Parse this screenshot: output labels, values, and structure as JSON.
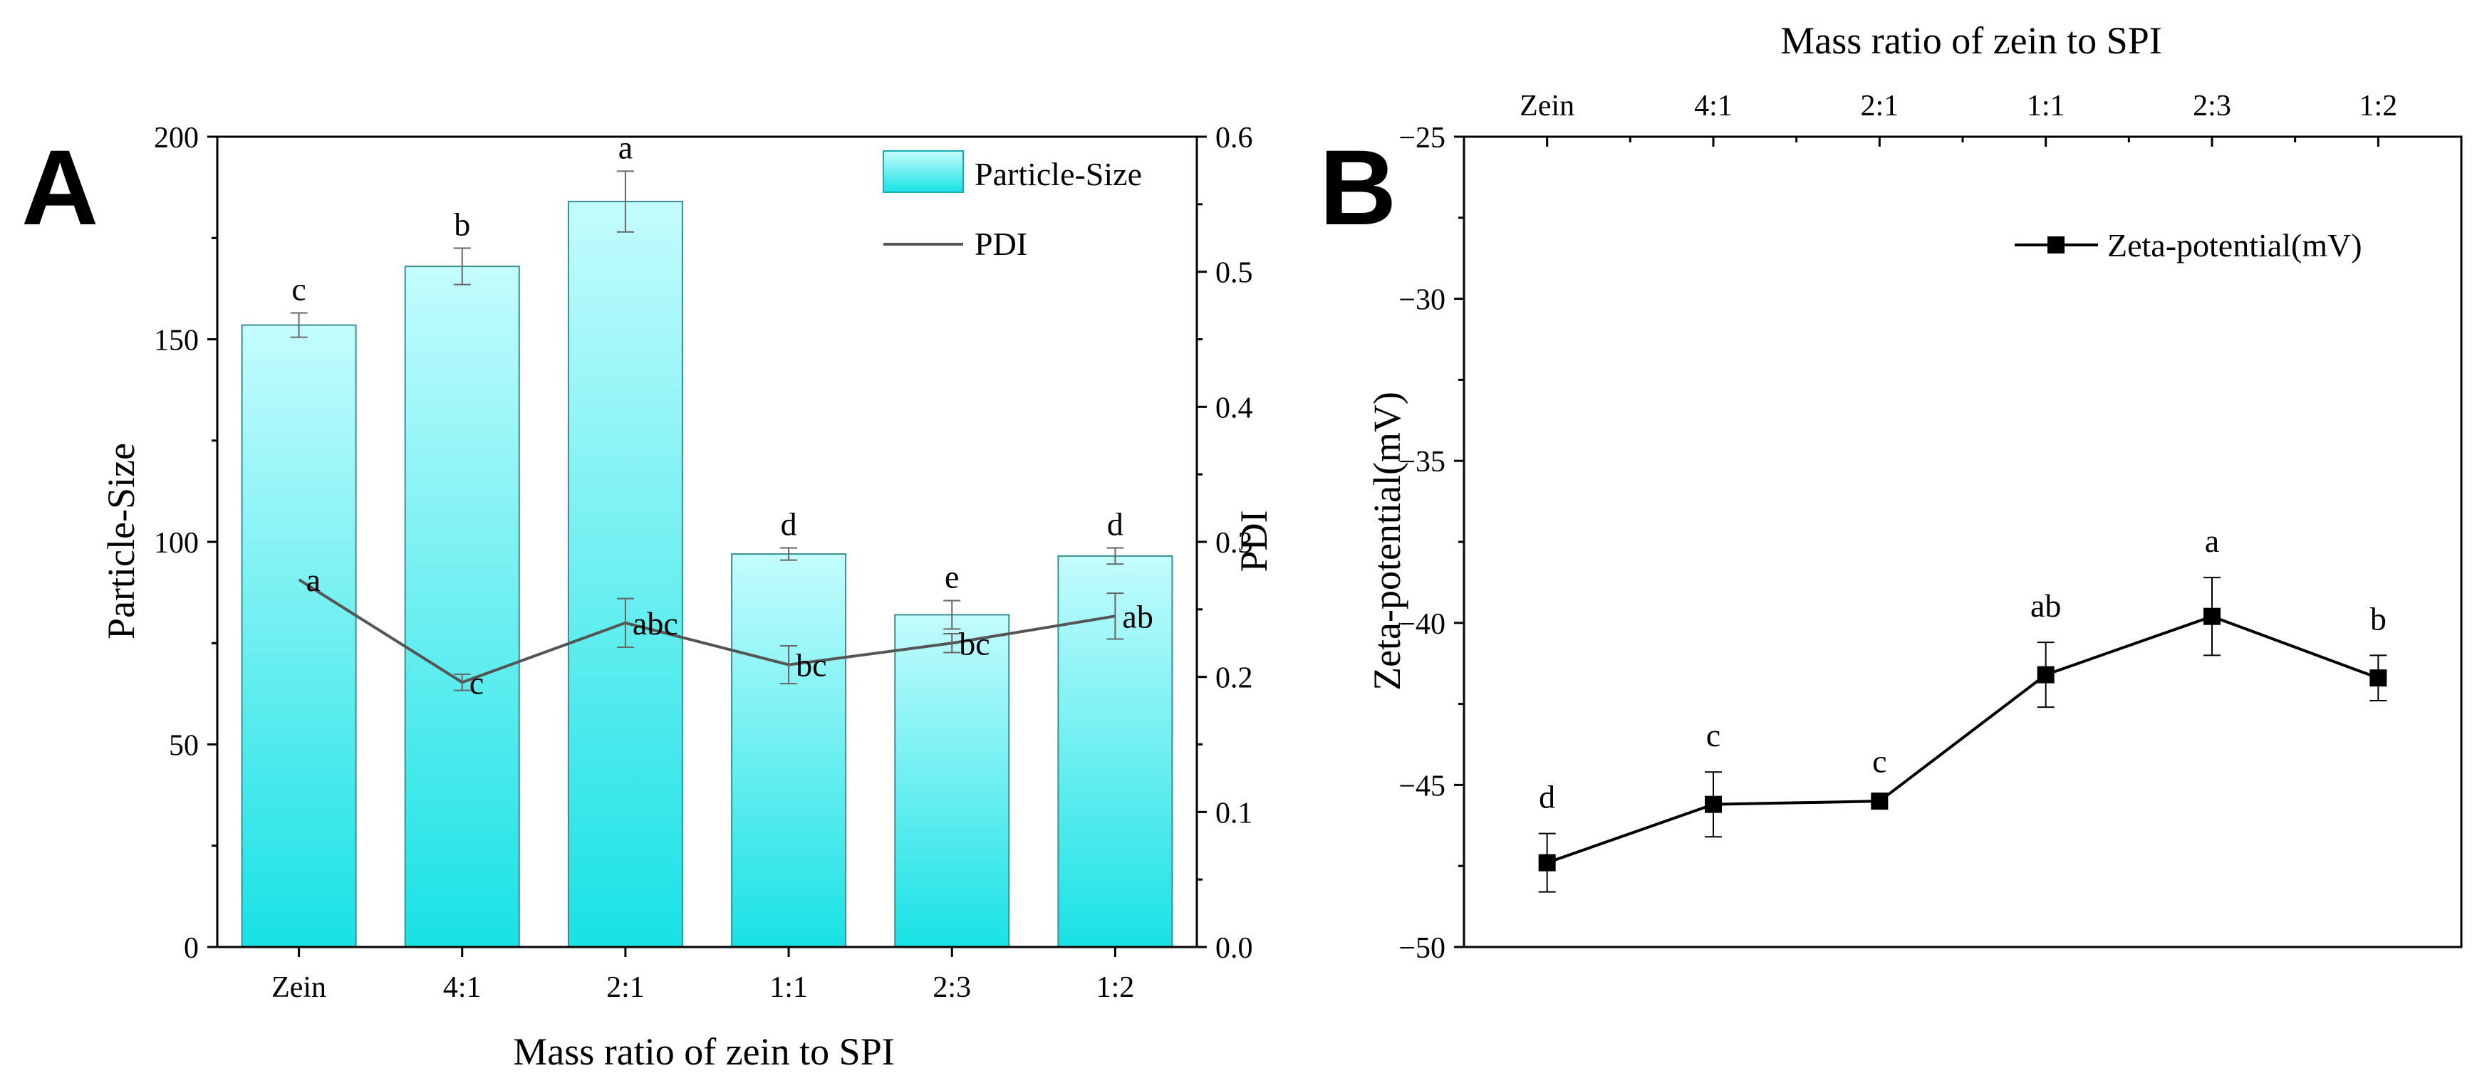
{
  "panels": {
    "A": {
      "letter": "A",
      "xlabel": "Mass ratio of zein to SPI",
      "ylabel_left": "Particle-Size",
      "ylabel_right": "PDI",
      "legend_bar": "Particle-Size",
      "legend_line": "PDI",
      "left_ticks": [
        "0",
        "50",
        "100",
        "150",
        "200"
      ],
      "right_ticks": [
        "0.0",
        "0.1",
        "0.2",
        "0.3",
        "0.4",
        "0.5",
        "0.6"
      ]
    },
    "B": {
      "letter": "B",
      "xlabel_top": "Mass ratio of zein to SPI",
      "ylabel": "Zeta-potential(mV)",
      "legend": "Zeta-potential(mV)",
      "y_ticks": [
        "−50",
        "−45",
        "−40",
        "−35",
        "−30",
        "−25"
      ]
    }
  },
  "chart_data": [
    {
      "panel": "A",
      "type": "bar",
      "categories": [
        "Zein",
        "4:1",
        "2:1",
        "1:1",
        "2:3",
        "1:2"
      ],
      "xlabel": "Mass ratio of zein to SPI",
      "ylabel": "Particle-Size",
      "ylim": [
        0,
        200
      ],
      "y2label": "PDI",
      "y2lim": [
        0,
        0.6
      ],
      "series": [
        {
          "name": "Particle-Size",
          "type": "bar",
          "axis": "left",
          "values": [
            153.5,
            168,
            184,
            97,
            82,
            96.5
          ],
          "errors": [
            3,
            4.5,
            7.5,
            1.5,
            3.5,
            2
          ],
          "letters": [
            "c",
            "b",
            "a",
            "d",
            "e",
            "d"
          ],
          "color": "#1ce3e6"
        },
        {
          "name": "PDI",
          "type": "line",
          "axis": "right",
          "values": [
            0.272,
            0.196,
            0.24,
            0.209,
            0.225,
            0.245
          ],
          "errors": [
            0,
            0.006,
            0.018,
            0.014,
            0.007,
            0.017
          ],
          "letters": [
            "a",
            "c",
            "abc",
            "bc",
            "bc",
            "ab"
          ],
          "color": "#555555"
        }
      ],
      "legend": [
        "Particle-Size",
        "PDI"
      ]
    },
    {
      "panel": "B",
      "type": "line",
      "x": [
        "Zein",
        "4:1",
        "2:1",
        "1:1",
        "2:3",
        "1:2"
      ],
      "xlabel": "Mass ratio of zein to SPI",
      "ylabel": "Zeta-potential(mV)",
      "ylim": [
        -50,
        -25
      ],
      "series": [
        {
          "name": "Zeta-potential(mV)",
          "values": [
            -47.4,
            -45.6,
            -45.5,
            -41.6,
            -39.8,
            -41.7
          ],
          "errors": [
            0.9,
            1.0,
            0.1,
            1.0,
            1.2,
            0.7
          ],
          "letters": [
            "d",
            "c",
            "c",
            "ab",
            "a",
            "b"
          ],
          "color": "#000000"
        }
      ],
      "legend": [
        "Zeta-potential(mV)"
      ]
    }
  ]
}
